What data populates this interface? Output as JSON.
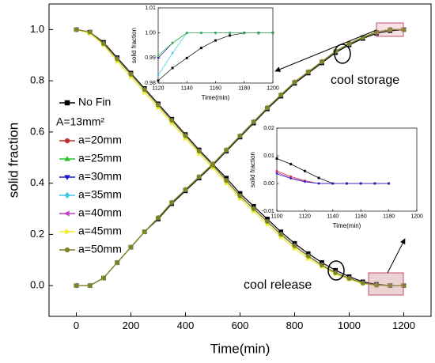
{
  "chart_data": [
    {
      "type": "line",
      "xlabel": "Time(min)",
      "ylabel": "solid fraction",
      "annotations": [
        "cool storage",
        "cool release"
      ],
      "legend_note": "A=13mm²",
      "xlim": [
        -100,
        1300
      ],
      "xticks": [
        0,
        200,
        400,
        600,
        800,
        1000,
        1200
      ],
      "ylim": [
        -0.12,
        1.1
      ],
      "yticks": [
        {
          "value": 0,
          "label": "0.0"
        },
        {
          "value": 0.2,
          "label": "0.2"
        },
        {
          "value": 0.4,
          "label": "0.4"
        },
        {
          "value": 0.6,
          "label": "0.6"
        },
        {
          "value": 0.8,
          "label": "0.8"
        },
        {
          "value": 1,
          "label": "1.0"
        }
      ],
      "x": [
        0,
        50,
        100,
        150,
        200,
        250,
        300,
        350,
        400,
        450,
        500,
        550,
        600,
        650,
        700,
        750,
        800,
        850,
        900,
        950,
        1000,
        1050,
        1100,
        1150,
        1200
      ],
      "series": [
        {
          "name": "No Fin",
          "color": "#000000",
          "marker": "square",
          "storage": [
            0,
            0,
            0.03,
            0.09,
            0.15,
            0.21,
            0.26,
            0.32,
            0.37,
            0.42,
            0.47,
            0.525,
            0.58,
            0.635,
            0.69,
            0.74,
            0.79,
            0.83,
            0.87,
            0.91,
            0.94,
            0.965,
            0.985,
            0.995,
            1.0
          ],
          "release": [
            1,
            0.99,
            0.95,
            0.89,
            0.83,
            0.77,
            0.71,
            0.65,
            0.59,
            0.53,
            0.475,
            0.42,
            0.36,
            0.31,
            0.26,
            0.21,
            0.165,
            0.125,
            0.09,
            0.06,
            0.035,
            0.015,
            0.005,
            0,
            0
          ]
        },
        {
          "name": "a=20mm",
          "color": "#c0302a",
          "marker": "circle",
          "storage": [
            0,
            0,
            0.03,
            0.09,
            0.15,
            0.21,
            0.265,
            0.325,
            0.375,
            0.425,
            0.475,
            0.53,
            0.585,
            0.64,
            0.695,
            0.745,
            0.795,
            0.835,
            0.875,
            0.915,
            0.945,
            0.97,
            0.99,
            1.0,
            1.0
          ],
          "release": [
            1,
            0.99,
            0.945,
            0.885,
            0.825,
            0.765,
            0.705,
            0.645,
            0.585,
            0.525,
            0.47,
            0.41,
            0.35,
            0.3,
            0.25,
            0.2,
            0.155,
            0.115,
            0.08,
            0.05,
            0.028,
            0.01,
            0.002,
            0,
            0
          ]
        },
        {
          "name": "a=25mm",
          "color": "#2ec42e",
          "marker": "triangle-up",
          "storage": [
            0,
            0,
            0.03,
            0.09,
            0.15,
            0.21,
            0.265,
            0.325,
            0.375,
            0.425,
            0.475,
            0.53,
            0.585,
            0.64,
            0.695,
            0.745,
            0.795,
            0.835,
            0.875,
            0.915,
            0.945,
            0.97,
            0.99,
            1.0,
            1.0
          ],
          "release": [
            1,
            0.99,
            0.945,
            0.885,
            0.825,
            0.765,
            0.705,
            0.645,
            0.585,
            0.525,
            0.47,
            0.41,
            0.35,
            0.3,
            0.25,
            0.2,
            0.155,
            0.115,
            0.08,
            0.05,
            0.028,
            0.01,
            0.002,
            0,
            0
          ]
        },
        {
          "name": "a=30mm",
          "color": "#1a1acc",
          "marker": "triangle-down",
          "storage": [
            0,
            0,
            0.03,
            0.09,
            0.15,
            0.21,
            0.265,
            0.325,
            0.375,
            0.425,
            0.475,
            0.53,
            0.585,
            0.64,
            0.695,
            0.745,
            0.795,
            0.835,
            0.875,
            0.915,
            0.945,
            0.97,
            0.99,
            1.0,
            1.0
          ],
          "release": [
            1,
            0.99,
            0.945,
            0.885,
            0.825,
            0.765,
            0.705,
            0.645,
            0.585,
            0.525,
            0.47,
            0.41,
            0.35,
            0.3,
            0.25,
            0.2,
            0.155,
            0.115,
            0.08,
            0.05,
            0.028,
            0.01,
            0.002,
            0,
            0
          ]
        },
        {
          "name": "a=35mm",
          "color": "#3cc8ec",
          "marker": "diamond",
          "storage": [
            0,
            0,
            0.03,
            0.09,
            0.15,
            0.21,
            0.265,
            0.325,
            0.375,
            0.425,
            0.475,
            0.53,
            0.585,
            0.64,
            0.695,
            0.745,
            0.795,
            0.835,
            0.875,
            0.915,
            0.945,
            0.97,
            0.99,
            1.0,
            1.0
          ],
          "release": [
            1,
            0.99,
            0.945,
            0.885,
            0.825,
            0.765,
            0.705,
            0.645,
            0.585,
            0.525,
            0.47,
            0.41,
            0.35,
            0.3,
            0.25,
            0.2,
            0.155,
            0.115,
            0.08,
            0.05,
            0.028,
            0.01,
            0.002,
            0,
            0
          ]
        },
        {
          "name": "a=40mm",
          "color": "#c838c8",
          "marker": "triangle-left",
          "storage": [
            0,
            0,
            0.03,
            0.09,
            0.15,
            0.21,
            0.265,
            0.325,
            0.375,
            0.425,
            0.475,
            0.53,
            0.585,
            0.64,
            0.695,
            0.745,
            0.795,
            0.835,
            0.875,
            0.915,
            0.945,
            0.97,
            0.99,
            1.0,
            1.0
          ],
          "release": [
            1,
            0.99,
            0.945,
            0.885,
            0.825,
            0.765,
            0.705,
            0.645,
            0.585,
            0.525,
            0.47,
            0.41,
            0.35,
            0.3,
            0.25,
            0.2,
            0.155,
            0.115,
            0.08,
            0.05,
            0.028,
            0.01,
            0.002,
            0,
            0
          ]
        },
        {
          "name": "a=45mm",
          "color": "#ecec20",
          "marker": "triangle-right",
          "storage": [
            0,
            0,
            0.03,
            0.09,
            0.15,
            0.21,
            0.265,
            0.325,
            0.375,
            0.425,
            0.475,
            0.53,
            0.585,
            0.64,
            0.695,
            0.745,
            0.795,
            0.835,
            0.875,
            0.915,
            0.945,
            0.97,
            0.99,
            1.0,
            1.0
          ],
          "release": [
            1,
            0.985,
            0.94,
            0.875,
            0.815,
            0.755,
            0.695,
            0.635,
            0.575,
            0.515,
            0.46,
            0.4,
            0.34,
            0.29,
            0.24,
            0.19,
            0.145,
            0.105,
            0.075,
            0.045,
            0.025,
            0.008,
            0.001,
            0,
            0
          ]
        },
        {
          "name": "a=50mm",
          "color": "#7f8422",
          "marker": "circle",
          "storage": [
            0,
            0,
            0.03,
            0.09,
            0.15,
            0.21,
            0.265,
            0.325,
            0.375,
            0.425,
            0.475,
            0.53,
            0.585,
            0.64,
            0.695,
            0.745,
            0.795,
            0.835,
            0.875,
            0.915,
            0.945,
            0.97,
            0.99,
            1.0,
            1.0
          ],
          "release": [
            1,
            0.99,
            0.945,
            0.885,
            0.825,
            0.765,
            0.705,
            0.645,
            0.585,
            0.525,
            0.47,
            0.41,
            0.35,
            0.3,
            0.25,
            0.2,
            0.155,
            0.115,
            0.08,
            0.05,
            0.028,
            0.01,
            0.002,
            0,
            0
          ]
        }
      ]
    },
    {
      "type": "line",
      "xlabel": "Time(min)",
      "ylabel": "solid fraction",
      "xlim": [
        1120,
        1200
      ],
      "xticks": [
        1120,
        1140,
        1160,
        1180,
        1200
      ],
      "ylim": [
        0.98,
        1.01
      ],
      "yticks": [
        0.98,
        0.99,
        {
          "value": 1,
          "label": "1.00"
        },
        1.01
      ],
      "x": [
        1120,
        1130,
        1140,
        1150,
        1160,
        1170,
        1180,
        1190,
        1200
      ],
      "series": [
        {
          "color": "#000000",
          "marker": "square",
          "values": [
            0.981,
            0.986,
            0.99,
            0.994,
            0.997,
            0.999,
            1.0,
            1.0,
            1.0
          ]
        },
        {
          "color": "#3cc8ec",
          "marker": "diamond",
          "values": [
            0.983,
            0.992,
            1.0,
            1.0,
            1.0,
            1.0,
            1.0,
            1.0,
            1.0
          ]
        },
        {
          "color": "#1a1acc",
          "marker": "triangle-down",
          "values": [
            0.99,
            0.996,
            1.0,
            1.0,
            1.0,
            1.0,
            1.0,
            1.0,
            1.0
          ]
        },
        {
          "color": "#2ec42e",
          "marker": "triangle-up",
          "values": [
            0.991,
            0.996,
            1.0,
            1.0,
            1.0,
            1.0,
            1.0,
            1.0,
            1.0
          ]
        }
      ]
    },
    {
      "type": "line",
      "xlabel": "Time(min)",
      "ylabel": "solid fraction",
      "xlim": [
        1100,
        1200
      ],
      "xticks": [
        1100,
        1120,
        1140,
        1160,
        1180,
        1200
      ],
      "ylim": [
        -0.01,
        0.02
      ],
      "yticks": [
        -0.01,
        {
          "value": 0,
          "label": "0.00"
        },
        0.01,
        0.02
      ],
      "x": [
        1100,
        1110,
        1120,
        1130,
        1140,
        1150,
        1160,
        1170,
        1180
      ],
      "series": [
        {
          "color": "#000000",
          "marker": "square",
          "values": [
            0.009,
            0.007,
            0.0045,
            0.002,
            0,
            0,
            0,
            0,
            0
          ]
        },
        {
          "color": "#c0302a",
          "marker": "circle",
          "values": [
            0.0045,
            0.0025,
            0.001,
            0,
            0,
            0,
            0,
            0,
            0
          ]
        },
        {
          "color": "#c838c8",
          "marker": "triangle-left",
          "values": [
            0.004,
            0.002,
            0.0008,
            0,
            0,
            0,
            0,
            0,
            0
          ]
        },
        {
          "color": "#1a1acc",
          "marker": "triangle-down",
          "values": [
            0.0035,
            0.0018,
            0.0006,
            0,
            0,
            0,
            0,
            0,
            0
          ]
        }
      ]
    }
  ]
}
